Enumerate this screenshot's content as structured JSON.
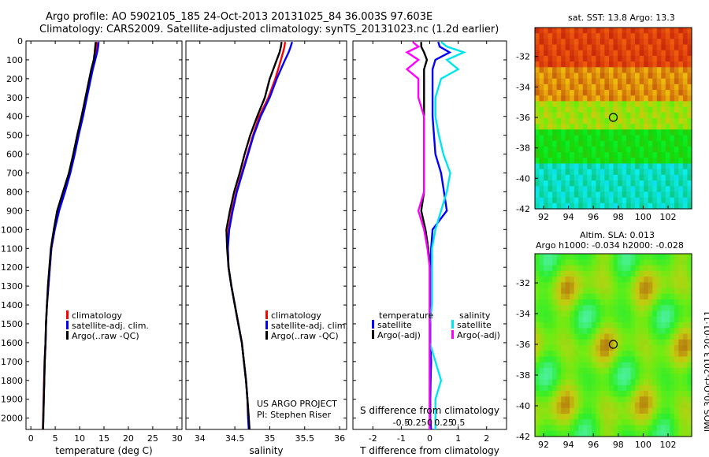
{
  "title": {
    "line1": "Argo profile: AO 5902105_185 24-Oct-2013 20131025_84 36.003S 97.603E",
    "line2": "Climatology: CARS2009. Satellite-adjusted climatology: synTS_20131023.nc (1.2d earlier)"
  },
  "colors": {
    "climatology": "#ff0000",
    "satellite": "#0000ff",
    "argo": "#000000",
    "sal_satellite": "#00e5ee",
    "sal_argo": "#ff00ff"
  },
  "legend_main": [
    "climatology",
    "satellite-adj. clim.",
    "Argo(..raw -QC)"
  ],
  "legend_diff": {
    "temperature_header": "temperature",
    "salinity_header": "salinity",
    "temperature_items": [
      "satellite",
      "Argo(-adj)"
    ],
    "salinity_items": [
      "satellite",
      "Argo(-adj)"
    ]
  },
  "project": {
    "line1": "US ARGO PROJECT",
    "line2": "PI: Stephen Riser"
  },
  "map_sst": {
    "title": "sat. SST: 13.8  Argo: 13.3"
  },
  "map_sla": {
    "title1": "Altim. SLA: 0.013",
    "title2": "Argo h1000: -0.034 h2000: -0.028"
  },
  "footer": "IMOS 30-Oct-2013 20:01:11",
  "chart_data": [
    {
      "type": "line",
      "name": "temperature-profile",
      "xlabel": "temperature (deg C)",
      "xlim": [
        -1,
        31
      ],
      "ylim": [
        0,
        2060
      ],
      "xticks": [
        0,
        5,
        10,
        15,
        20,
        25,
        30
      ],
      "yticks": [
        0,
        100,
        200,
        300,
        400,
        500,
        600,
        700,
        800,
        900,
        1000,
        1100,
        1200,
        1300,
        1400,
        1500,
        1600,
        1700,
        1800,
        1900,
        2000
      ],
      "depth": [
        5,
        30,
        60,
        100,
        150,
        200,
        300,
        400,
        500,
        600,
        700,
        800,
        900,
        1000,
        1100,
        1200,
        1300,
        1400,
        1500,
        1600,
        1700,
        1800,
        1900,
        2000,
        2060
      ],
      "series": [
        {
          "name": "climatology",
          "values": [
            13.6,
            13.5,
            13.3,
            13.0,
            12.6,
            12.2,
            11.4,
            10.6,
            9.7,
            8.9,
            8.0,
            6.9,
            5.7,
            4.9,
            4.2,
            3.9,
            3.6,
            3.3,
            3.1,
            3.0,
            2.8,
            2.7,
            2.6,
            2.5,
            2.45
          ]
        },
        {
          "name": "satellite-adj. clim.",
          "values": [
            13.9,
            13.8,
            13.6,
            13.2,
            12.7,
            12.3,
            11.5,
            10.7,
            9.8,
            9.0,
            8.1,
            7.0,
            5.8,
            4.9,
            4.2,
            3.9,
            3.6,
            3.3,
            3.1,
            3.0,
            2.85,
            2.75,
            2.65,
            2.55,
            2.5
          ]
        },
        {
          "name": "Argo(..raw -QC)",
          "values": [
            13.3,
            13.2,
            13.1,
            12.9,
            12.4,
            12.0,
            11.2,
            10.4,
            9.5,
            8.7,
            7.8,
            6.6,
            5.4,
            4.7,
            4.1,
            3.8,
            3.5,
            3.3,
            3.1,
            3.0,
            2.85,
            2.75,
            2.65,
            2.55,
            2.5
          ]
        }
      ]
    },
    {
      "type": "line",
      "name": "salinity-profile",
      "xlabel": "salinity",
      "xlim": [
        33.8,
        36.1
      ],
      "ylim": [
        0,
        2060
      ],
      "xticks": [
        34,
        34.5,
        35,
        35.5,
        36
      ],
      "depth": [
        5,
        30,
        60,
        100,
        150,
        200,
        300,
        400,
        500,
        600,
        700,
        800,
        900,
        1000,
        1100,
        1200,
        1300,
        1400,
        1500,
        1600,
        1700,
        1800,
        1900,
        2000,
        2060
      ],
      "series": [
        {
          "name": "climatology",
          "values": [
            35.22,
            35.21,
            35.19,
            35.16,
            35.12,
            35.08,
            34.98,
            34.85,
            34.76,
            34.68,
            34.6,
            34.52,
            34.46,
            34.41,
            34.4,
            34.41,
            34.45,
            34.5,
            34.55,
            34.6,
            34.63,
            34.66,
            34.68,
            34.7,
            34.71
          ]
        },
        {
          "name": "satellite-adj. clim.",
          "values": [
            35.32,
            35.3,
            35.27,
            35.22,
            35.16,
            35.1,
            35.0,
            34.87,
            34.77,
            34.69,
            34.61,
            34.53,
            34.47,
            34.42,
            34.4,
            34.41,
            34.45,
            34.5,
            34.55,
            34.6,
            34.63,
            34.66,
            34.68,
            34.69,
            34.7
          ]
        },
        {
          "name": "Argo(..raw -QC)",
          "values": [
            35.17,
            35.16,
            35.14,
            35.1,
            35.05,
            35.0,
            34.93,
            34.82,
            34.72,
            34.64,
            34.57,
            34.49,
            34.43,
            34.38,
            34.39,
            34.41,
            34.45,
            34.5,
            34.55,
            34.6,
            34.63,
            34.66,
            34.68,
            34.7,
            34.71
          ]
        }
      ]
    },
    {
      "type": "line",
      "name": "difference-profile",
      "xlabel": "T difference from climatology",
      "xlabel_top": "S difference from climatology",
      "xlim": [
        -2.7,
        2.7
      ],
      "ylim": [
        0,
        2060
      ],
      "xticks": [
        -2,
        -1,
        0,
        1,
        2
      ],
      "xticks_top": [
        "-0.5",
        "-0.25",
        "0",
        "0.25",
        "0.5"
      ],
      "depth": [
        5,
        30,
        60,
        100,
        150,
        200,
        300,
        400,
        500,
        600,
        700,
        800,
        900,
        1000,
        1100,
        1200,
        1300,
        1400,
        1500,
        1600,
        1700,
        1800,
        1900,
        2000,
        2060
      ],
      "series": [
        {
          "name": "temperature satellite",
          "values": [
            0.3,
            0.35,
            0.7,
            0.2,
            0.1,
            0.1,
            0.1,
            0.1,
            0.15,
            0.2,
            0.4,
            0.5,
            0.6,
            0.1,
            0.05,
            0.02,
            0.02,
            0.02,
            0.02,
            0.02,
            0.05,
            0.03,
            0.02,
            0.02,
            0.05
          ]
        },
        {
          "name": "temperature Argo(-adj)",
          "values": [
            -0.3,
            -0.3,
            -0.2,
            -0.1,
            -0.2,
            -0.2,
            -0.2,
            -0.2,
            -0.2,
            -0.2,
            -0.2,
            -0.2,
            -0.3,
            -0.15,
            -0.05,
            0,
            0,
            0,
            0,
            0,
            0,
            0,
            0,
            0,
            0
          ]
        },
        {
          "name": "salinity satellite",
          "values": [
            0.1,
            0.15,
            0.3,
            0.15,
            0.25,
            0.1,
            0.05,
            0.05,
            0.08,
            0.12,
            0.18,
            0.15,
            0.1,
            0.05,
            0.02,
            0.02,
            0.02,
            0.02,
            0.0,
            0.0,
            0.05,
            0.1,
            0.05,
            0.05,
            0.05
          ]
        },
        {
          "name": "salinity Argo(-adj)",
          "values": [
            -0.15,
            -0.1,
            -0.2,
            -0.1,
            -0.2,
            -0.1,
            -0.1,
            -0.05,
            -0.05,
            -0.05,
            -0.05,
            -0.05,
            -0.1,
            -0.05,
            -0.02,
            0,
            0,
            0,
            0,
            0,
            0,
            0,
            0,
            0,
            0
          ]
        }
      ]
    },
    {
      "type": "heatmap",
      "name": "sst-map",
      "xticks": [
        92,
        94,
        96,
        98,
        100,
        102
      ],
      "yticks": [
        -32,
        -34,
        -36,
        -38,
        -40,
        -42
      ],
      "xlim": [
        91.3,
        103.9
      ],
      "ylim": [
        -42,
        -30.1
      ],
      "marker": [
        97.6,
        -36.0
      ]
    },
    {
      "type": "heatmap",
      "name": "sla-map",
      "xticks": [
        92,
        94,
        96,
        98,
        100,
        102
      ],
      "yticks": [
        -32,
        -34,
        -36,
        -38,
        -40,
        -42
      ],
      "xlim": [
        91.3,
        103.9
      ],
      "ylim": [
        -42,
        -30.1
      ],
      "marker": [
        97.6,
        -36.0
      ]
    }
  ]
}
